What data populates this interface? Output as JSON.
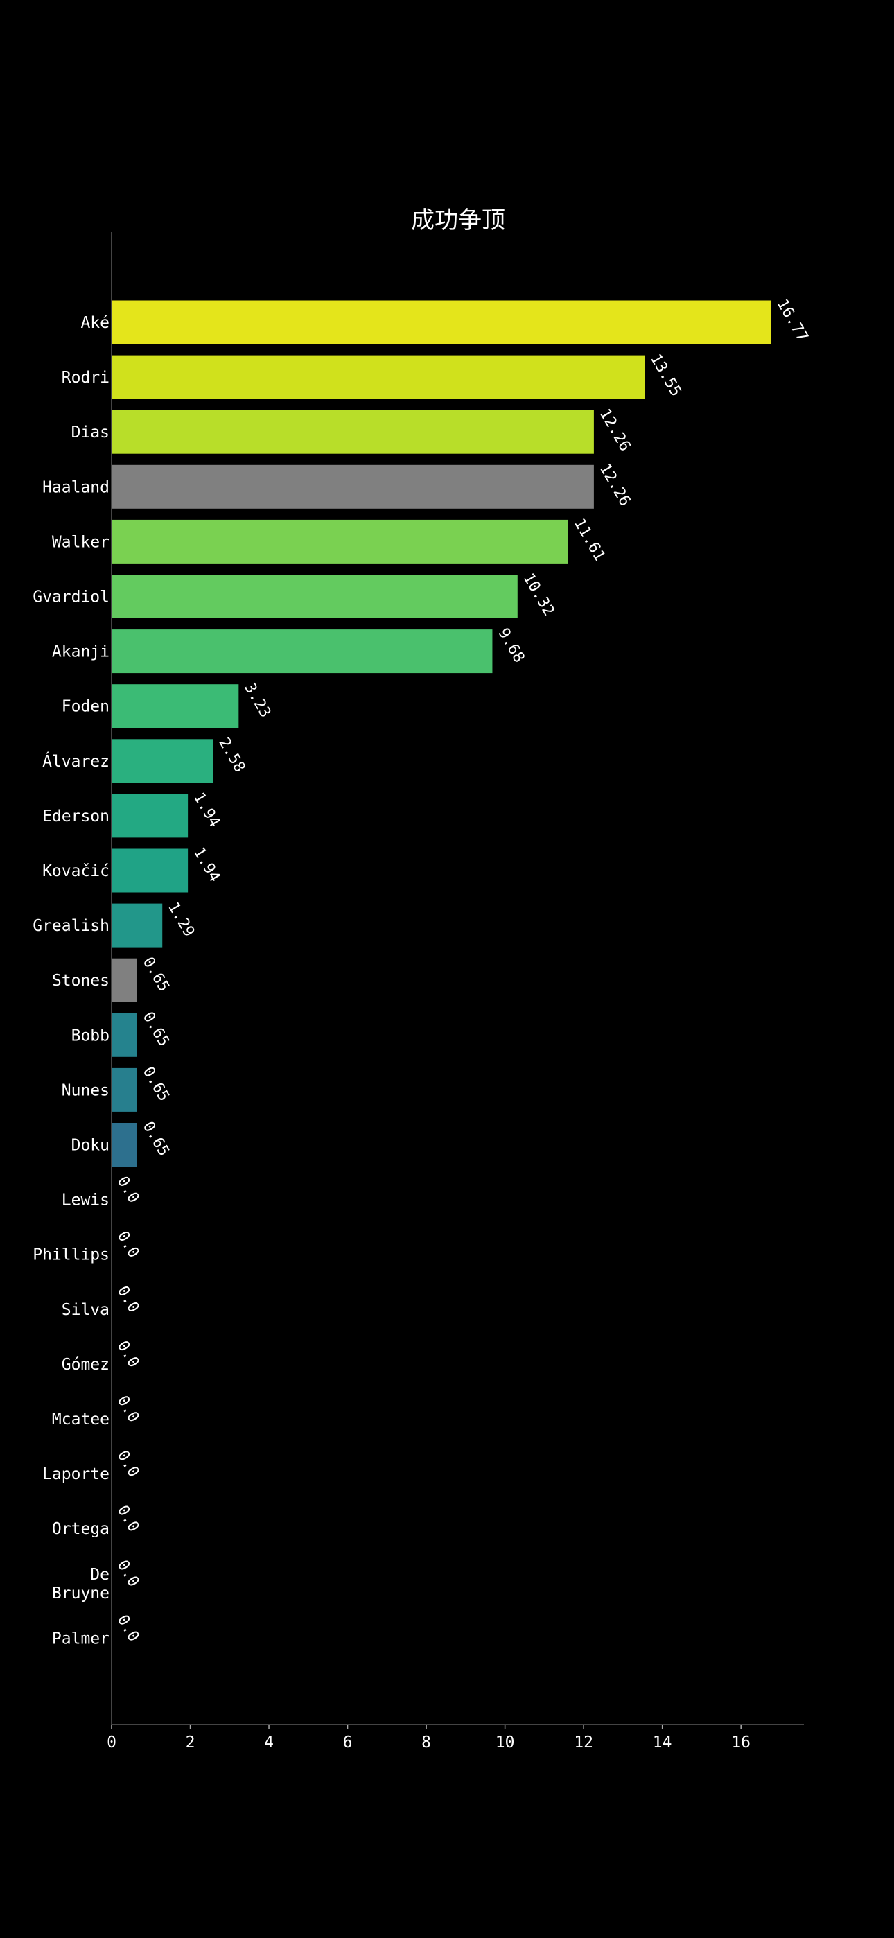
{
  "chart_data": {
    "type": "bar",
    "orientation": "horizontal",
    "title": "成功争顶",
    "xlabel": "",
    "ylabel": "",
    "xlim": [
      0,
      17.6
    ],
    "xticks": [
      0,
      2,
      4,
      6,
      8,
      10,
      12,
      14,
      16
    ],
    "grid": false,
    "legend": "none",
    "categories": [
      "Aké",
      "Rodri",
      "Dias",
      "Haaland",
      "Walker",
      "Gvardiol",
      "Akanji",
      "Foden",
      "Álvarez",
      "Ederson",
      "Kovačić",
      "Grealish",
      "Stones",
      "Bobb",
      "Nunes",
      "Doku",
      "Lewis",
      "Phillips",
      "Silva",
      "Gómez",
      "Mcatee",
      "Laporte",
      "Ortega",
      "De Bruyne",
      "Palmer"
    ],
    "values": [
      16.77,
      13.55,
      12.26,
      12.26,
      11.61,
      10.32,
      9.68,
      3.23,
      2.58,
      1.94,
      1.94,
      1.29,
      0.65,
      0.65,
      0.65,
      0.65,
      0.0,
      0.0,
      0.0,
      0.0,
      0.0,
      0.0,
      0.0,
      0.0,
      0.0
    ],
    "value_labels": [
      "16.77",
      "13.55",
      "12.26",
      "12.26",
      "11.61",
      "10.32",
      "9.68",
      "3.23",
      "2.58",
      "1.94",
      "1.94",
      "1.29",
      "0.65",
      "0.65",
      "0.65",
      "0.65",
      "0.0",
      "0.0",
      "0.0",
      "0.0",
      "0.0",
      "0.0",
      "0.0",
      "0.0",
      "0.0"
    ],
    "colors": [
      "#e4e51b",
      "#d0e11c",
      "#b8de29",
      "#808080",
      "#7ad151",
      "#63cb5f",
      "#4ac16d",
      "#3bbb75",
      "#2ab07f",
      "#23a983",
      "#20a386",
      "#22978a",
      "#808080",
      "#25838e",
      "#277f8e",
      "#2d708e",
      "#440154",
      "#440154",
      "#440154",
      "#440154",
      "#440154",
      "#440154",
      "#440154",
      "#440154",
      "#440154"
    ],
    "axis_color": "#444444",
    "background": "#000000"
  }
}
